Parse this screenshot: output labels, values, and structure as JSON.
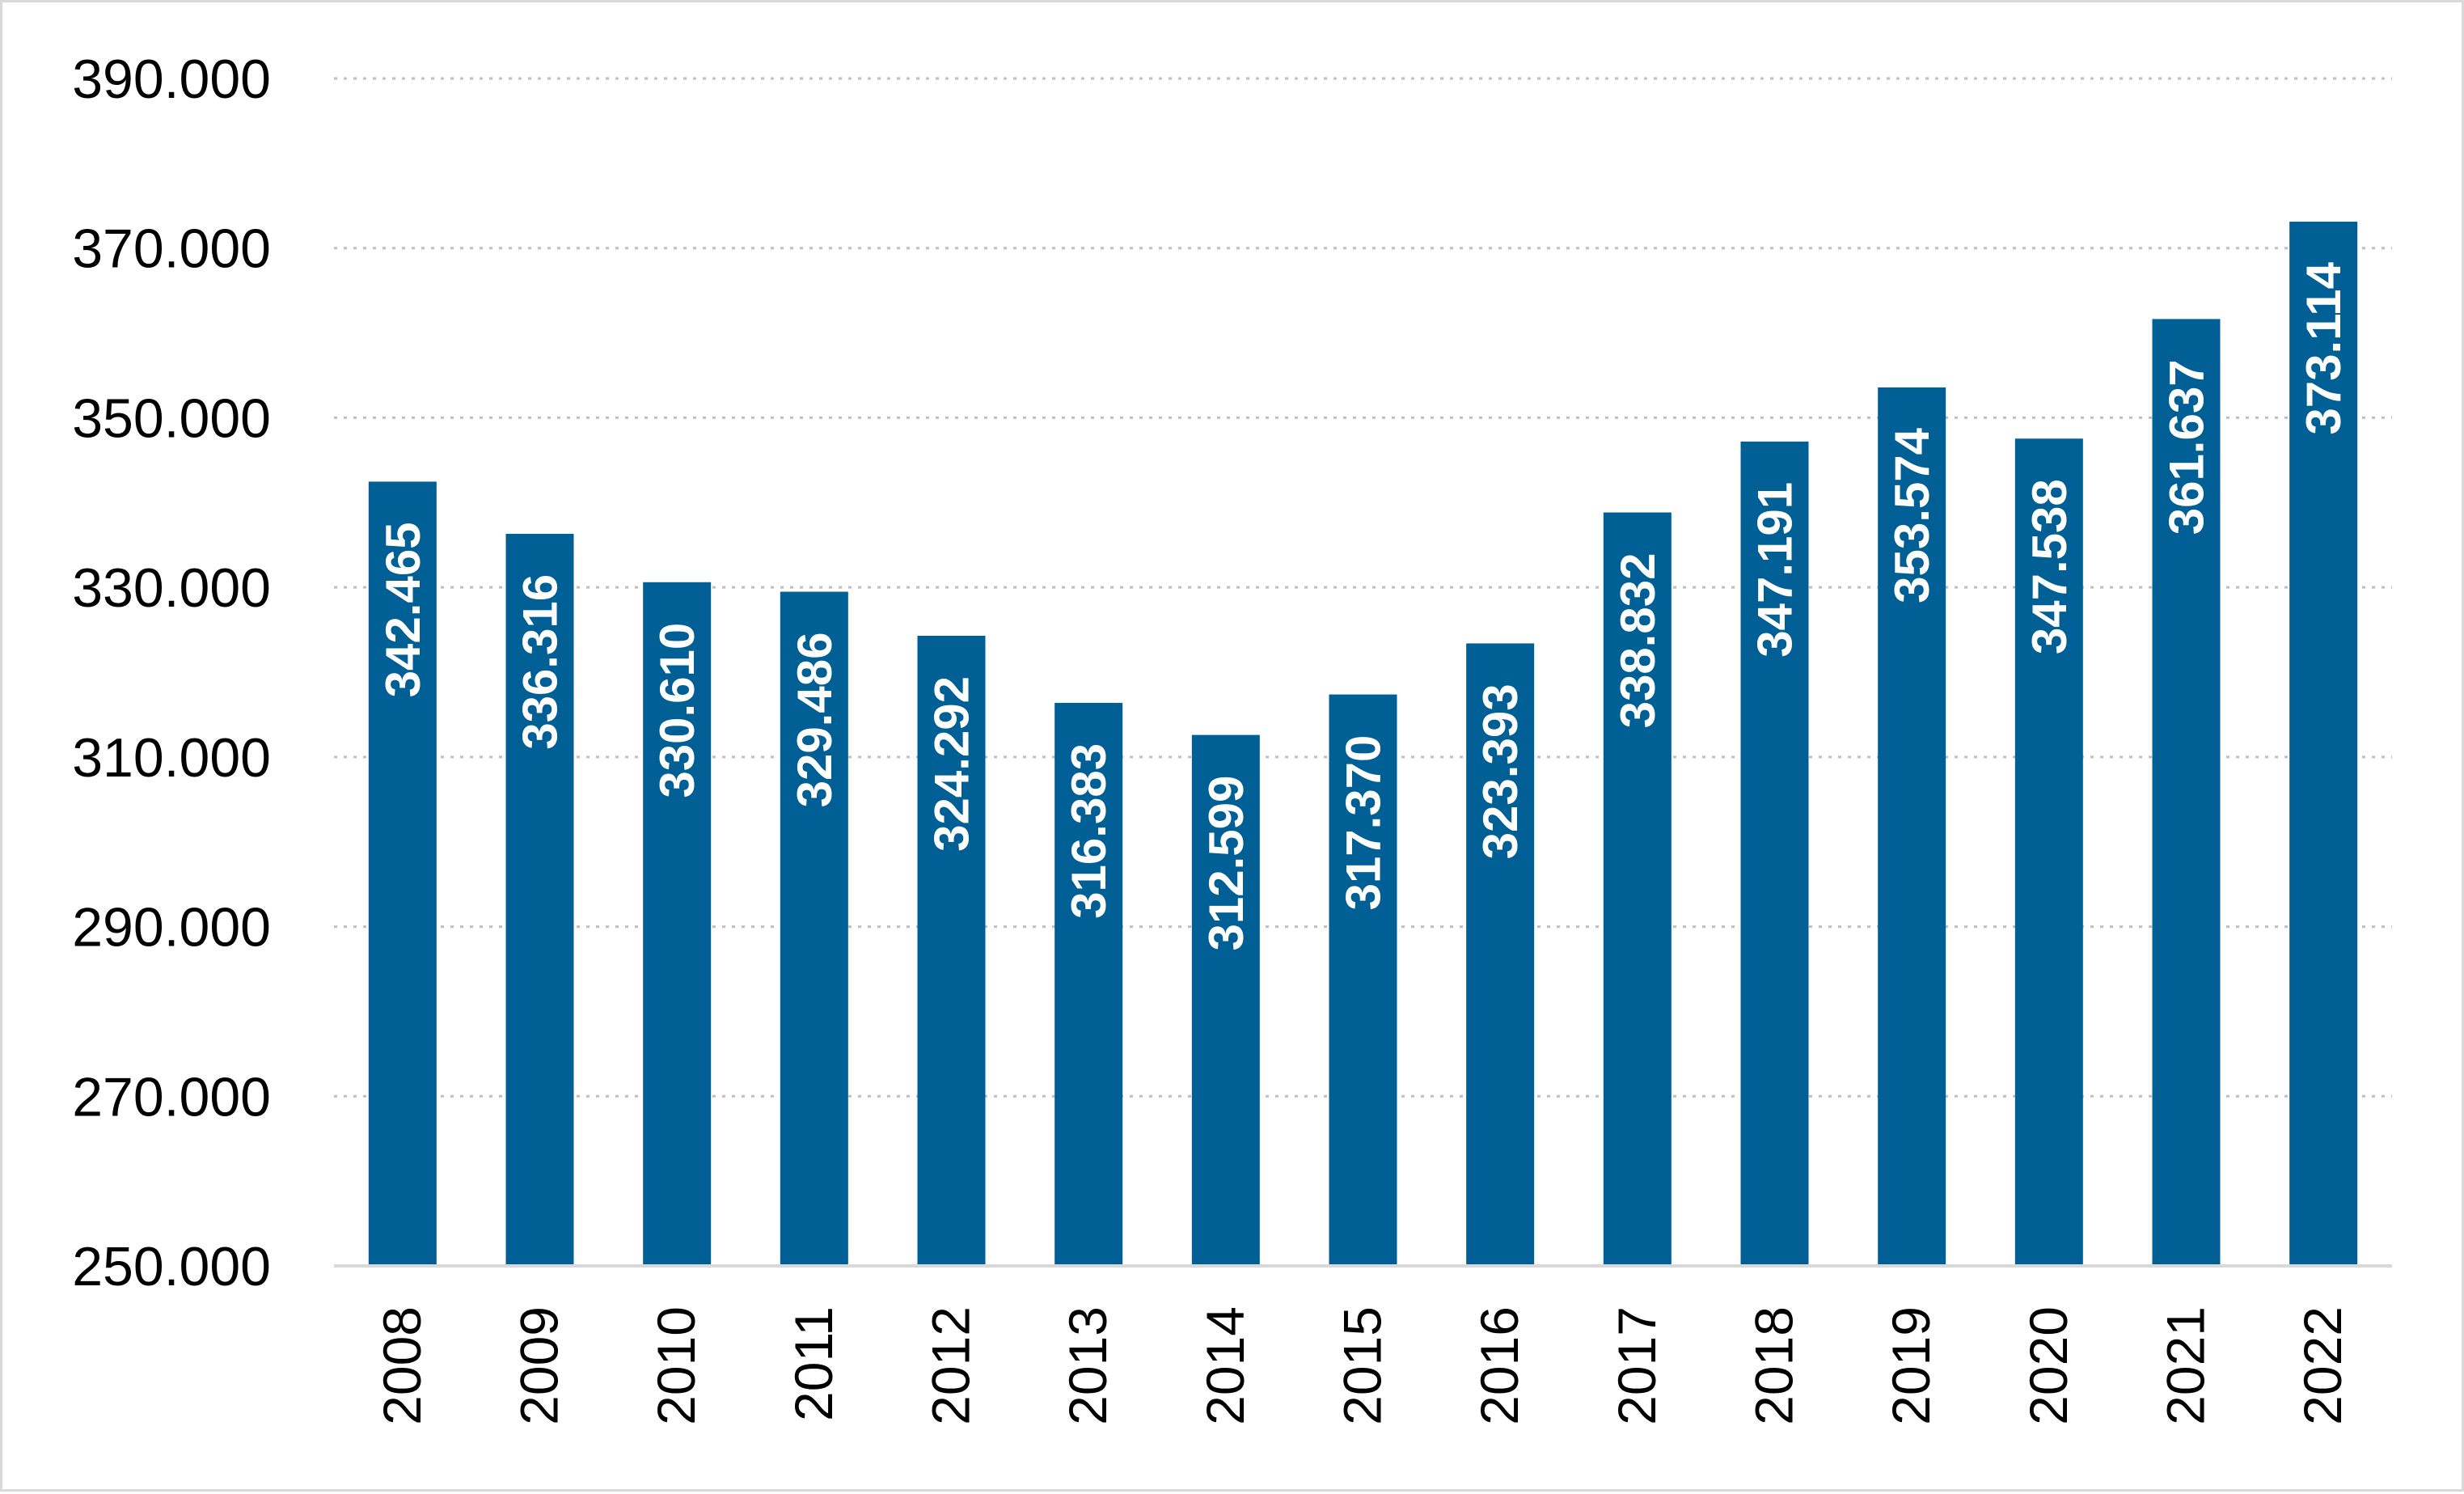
{
  "chart_data": {
    "type": "bar",
    "title": "",
    "xlabel": "",
    "ylabel": "",
    "categories": [
      "2008",
      "2009",
      "2010",
      "2011",
      "2012",
      "2013",
      "2014",
      "2015",
      "2016",
      "2017",
      "2018",
      "2019",
      "2020",
      "2021",
      "2022"
    ],
    "values": [
      342465,
      336316,
      330610,
      329486,
      324292,
      316383,
      312599,
      317370,
      323393,
      338832,
      347191,
      353574,
      347538,
      361637,
      373114
    ],
    "data_labels": [
      "342.465",
      "336.316",
      "330.610",
      "329.486",
      "324.292",
      "316.383",
      "312.599",
      "317.370",
      "323.393",
      "338.832",
      "347.191",
      "353.574",
      "347.538",
      "361.637",
      "373.114"
    ],
    "y_ticks": [
      250000,
      270000,
      290000,
      310000,
      330000,
      350000,
      370000,
      390000
    ],
    "y_tick_labels": [
      "250.000",
      "270.000",
      "290.000",
      "310.000",
      "330.000",
      "350.000",
      "370.000",
      "390.000"
    ],
    "ylim": [
      250000,
      390000
    ],
    "grid": true,
    "legend": "none",
    "colors": {
      "bar": "#006096",
      "gridline": "#bfbfbf",
      "axis": "#d9d9d9",
      "data_label": "#ffffff"
    }
  }
}
